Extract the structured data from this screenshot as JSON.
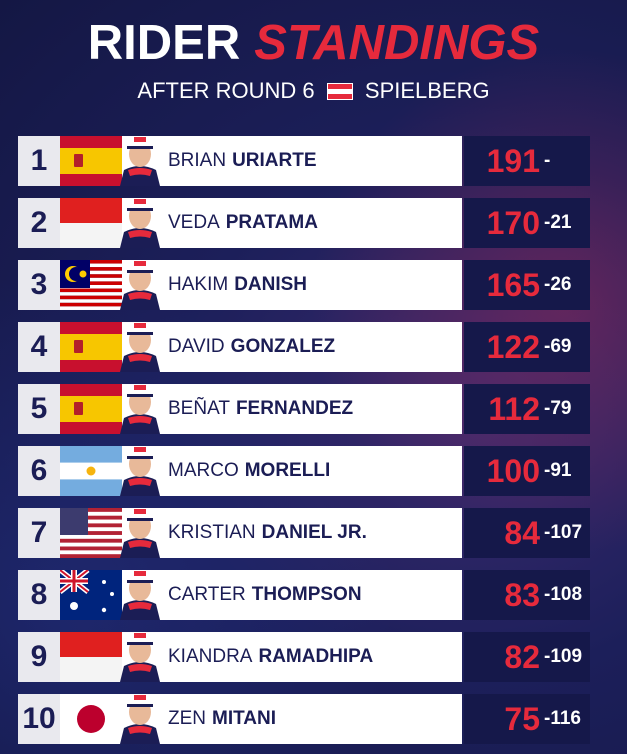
{
  "header": {
    "title_white": "RIDER",
    "title_red": "STANDINGS",
    "subtitle_left": "AFTER ROUND 6",
    "subtitle_right": "SPIELBERG",
    "flag_colors": [
      "#e62a3c",
      "#ffffff",
      "#e62a3c"
    ]
  },
  "colors": {
    "accent_red": "#e62a3c",
    "navy": "#1b1d55"
  },
  "riders": [
    {
      "pos": "1",
      "first": "BRIAN",
      "last": "URIARTE",
      "points": "191",
      "gap": "-",
      "flag": "spain-flag"
    },
    {
      "pos": "2",
      "first": "VEDA",
      "last": "PRATAMA",
      "points": "170",
      "gap": "-21",
      "flag": "indonesia-flag"
    },
    {
      "pos": "3",
      "first": "HAKIM",
      "last": "DANISH",
      "points": "165",
      "gap": "-26",
      "flag": "malaysia-flag"
    },
    {
      "pos": "4",
      "first": "DAVID",
      "last": "GONZALEZ",
      "points": "122",
      "gap": "-69",
      "flag": "spain-flag"
    },
    {
      "pos": "5",
      "first": "BEÑAT",
      "last": "FERNANDEZ",
      "points": "112",
      "gap": "-79",
      "flag": "spain-flag"
    },
    {
      "pos": "6",
      "first": "MARCO",
      "last": "MORELLI",
      "points": "100",
      "gap": "-91",
      "flag": "argentina-flag"
    },
    {
      "pos": "7",
      "first": "KRISTIAN",
      "last": "DANIEL JR.",
      "points": "84",
      "gap": "-107",
      "flag": "usa-flag"
    },
    {
      "pos": "8",
      "first": "CARTER",
      "last": "THOMPSON",
      "points": "83",
      "gap": "-108",
      "flag": "australia-flag"
    },
    {
      "pos": "9",
      "first": "KIANDRA",
      "last": "RAMADHIPA",
      "points": "82",
      "gap": "-109",
      "flag": "indonesia-flag"
    },
    {
      "pos": "10",
      "first": "ZEN",
      "last": "MITANI",
      "points": "75",
      "gap": "-116",
      "flag": "japan-flag"
    }
  ]
}
